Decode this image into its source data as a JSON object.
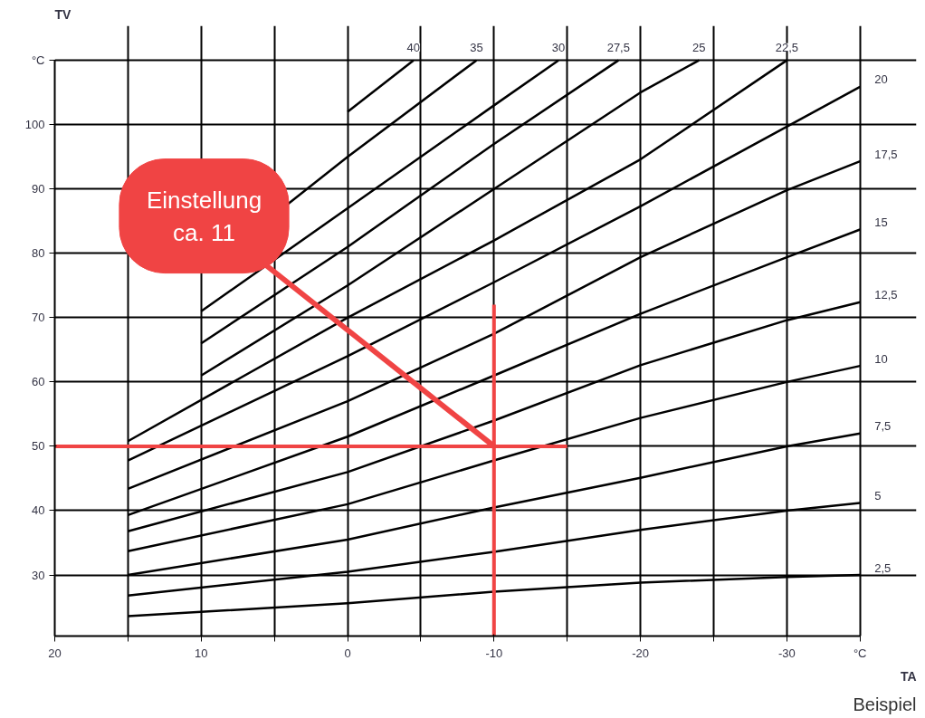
{
  "chart_data": {
    "type": "line",
    "xlabel": "TA",
    "ylabel": "TV",
    "xlim": [
      20,
      -35
    ],
    "ylim": [
      20.5,
      110
    ],
    "xticks": [
      20,
      {
        "value": 15,
        "label": null
      },
      10,
      {
        "value": 5,
        "label": null
      },
      0,
      {
        "value": -5,
        "label": null
      },
      -10,
      {
        "value": -15,
        "label": null
      },
      -20,
      {
        "value": -25,
        "label": null
      },
      -30,
      {
        "value": -35,
        "label": "°C"
      }
    ],
    "yticks": [
      30,
      40,
      50,
      60,
      70,
      80,
      90,
      100,
      {
        "value": 110,
        "label": "°C"
      }
    ],
    "grid": true,
    "marker": "none",
    "line_style": "solid",
    "series": [
      {
        "name": "2,5",
        "color": "#000000",
        "x": [
          15,
          0,
          -10,
          -20,
          -30,
          -35
        ],
        "values": [
          23.6,
          25.6,
          27.4,
          28.8,
          29.7,
          30
        ]
      },
      {
        "name": "5",
        "color": "#000000",
        "x": [
          15,
          0,
          -10,
          -20,
          -30,
          -35
        ],
        "values": [
          26.8,
          30.5,
          33.6,
          37,
          40,
          41.2
        ]
      },
      {
        "name": "7,5",
        "color": "#000000",
        "x": [
          15,
          0,
          -10,
          -20,
          -30,
          -35
        ],
        "values": [
          30,
          35.5,
          40.5,
          45.1,
          50,
          52
        ]
      },
      {
        "name": "10",
        "color": "#000000",
        "x": [
          15,
          0,
          -10,
          -20,
          -30,
          -35
        ],
        "values": [
          33.7,
          41,
          47.8,
          54.4,
          60,
          62.5
        ]
      },
      {
        "name": "12,5",
        "color": "#000000",
        "x": [
          15,
          0,
          -10,
          -20,
          -30,
          -35
        ],
        "values": [
          36.8,
          46,
          54,
          62.6,
          69.6,
          72.4
        ]
      },
      {
        "name": "15",
        "color": "#000000",
        "x": [
          15,
          0,
          -10,
          -20,
          -30,
          -35
        ],
        "values": [
          39.3,
          51.5,
          61,
          70.6,
          79.4,
          83.7
        ]
      },
      {
        "name": "17,5",
        "color": "#000000",
        "x": [
          15,
          0,
          -10,
          -20,
          -30,
          -35
        ],
        "values": [
          43.4,
          57,
          67.5,
          79.4,
          89.8,
          94.3
        ]
      },
      {
        "name": "20",
        "color": "#000000",
        "x": [
          15,
          0,
          -10,
          -20,
          -30,
          -35
        ],
        "values": [
          47.8,
          64,
          75.5,
          87.3,
          99.7,
          105.9
        ]
      },
      {
        "name": "22,5",
        "color": "#000000",
        "x": [
          15,
          0,
          -10,
          -20,
          -30
        ],
        "values": [
          50.8,
          70,
          82,
          94.6,
          110
        ]
      },
      {
        "name": "25",
        "color": "#000000",
        "x": [
          10,
          0,
          -10,
          -20,
          -24
        ],
        "values": [
          61,
          75,
          90,
          105,
          110
        ]
      },
      {
        "name": "27,5",
        "color": "#000000",
        "x": [
          10,
          0,
          -10,
          -18.5
        ],
        "values": [
          66,
          81,
          97,
          110
        ]
      },
      {
        "name": "30",
        "color": "#000000",
        "x": [
          10,
          0,
          -10,
          -14.4
        ],
        "values": [
          71,
          87,
          103,
          110
        ]
      },
      {
        "name": "35",
        "color": "#000000",
        "x": [
          10,
          0,
          -8.8
        ],
        "values": [
          77,
          95,
          110
        ]
      },
      {
        "name": "40",
        "color": "#000000",
        "x": [
          0,
          -4.5
        ],
        "values": [
          102,
          110
        ]
      },
      {
        "color": "#f04444",
        "x": [
          20,
          -15
        ],
        "values": [
          50,
          50
        ]
      },
      {
        "color": "#f04444",
        "x": [
          -10,
          -10
        ],
        "values": [
          20.5,
          72
        ]
      }
    ],
    "annotations": [
      {
        "text": "Einstellung\nca. 11",
        "x": -10,
        "y": 50
      },
      "Beispiel"
    ]
  }
}
